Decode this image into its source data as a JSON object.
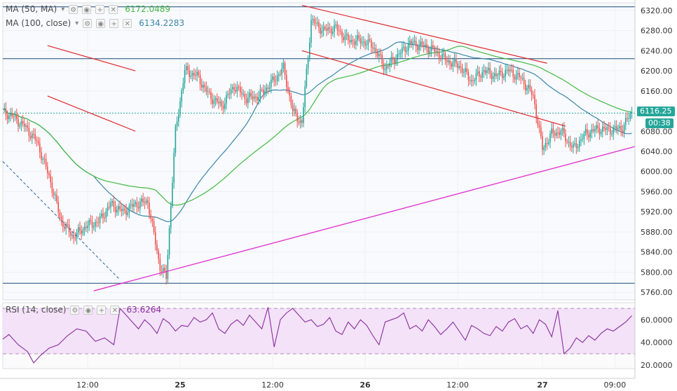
{
  "legend": {
    "ma50": {
      "label": "MA (50, MA)",
      "value": "6172.0489",
      "color": "#43b843"
    },
    "ma100": {
      "label": "MA (100, close)",
      "value": "6134.2283",
      "color": "#3d86a8"
    },
    "rsi": {
      "label": "RSI (14, close)",
      "value": "63.6264",
      "color": "#8a2d9e"
    }
  },
  "icons": [
    "settings-icon",
    "eye-icon",
    "plus-icon",
    "close-icon"
  ],
  "price_tag": {
    "price": "6116.25",
    "countdown": "00:38",
    "color": "#26a69a"
  },
  "colors": {
    "up": "#26a69a",
    "down": "#ef5350",
    "channel": "#e0272d",
    "support": "#e32fd0",
    "horizontal": "#1a4a7a",
    "rsi_band": "#f3e2f8"
  },
  "chart_data": [
    {
      "type": "candlestick",
      "title": "",
      "x_ticks": [
        "12:00",
        "25",
        "12:00",
        "26",
        "12:00",
        "27",
        "09:00"
      ],
      "y_ticks": [
        5760,
        5800,
        5840,
        5880,
        5920,
        5960,
        6000,
        6040,
        6080,
        6160,
        6200,
        6240,
        6280,
        6320
      ],
      "ylim": [
        5745,
        6335
      ],
      "grid": true,
      "last_price": 6116.25,
      "series": [
        {
          "name": "MA (50, MA)",
          "value": 6172.0489
        },
        {
          "name": "MA (100, close)",
          "value": 6134.2283
        }
      ],
      "close_path": [
        [
          0,
          6118
        ],
        [
          6,
          6110
        ],
        [
          14,
          6090
        ],
        [
          22,
          6060
        ],
        [
          30,
          5990
        ],
        [
          38,
          5900
        ],
        [
          46,
          5870
        ],
        [
          54,
          5892
        ],
        [
          62,
          5900
        ],
        [
          70,
          5935
        ],
        [
          78,
          5920
        ],
        [
          86,
          5935
        ],
        [
          94,
          5940
        ],
        [
          102,
          5810
        ],
        [
          106,
          5790
        ],
        [
          112,
          6080
        ],
        [
          118,
          6200
        ],
        [
          126,
          6190
        ],
        [
          134,
          6150
        ],
        [
          142,
          6130
        ],
        [
          150,
          6170
        ],
        [
          158,
          6145
        ],
        [
          166,
          6150
        ],
        [
          174,
          6175
        ],
        [
          182,
          6205
        ],
        [
          188,
          6120
        ],
        [
          194,
          6095
        ],
        [
          200,
          6300
        ],
        [
          208,
          6280
        ],
        [
          216,
          6285
        ],
        [
          224,
          6260
        ],
        [
          232,
          6260
        ],
        [
          240,
          6250
        ],
        [
          248,
          6205
        ],
        [
          256,
          6230
        ],
        [
          264,
          6255
        ],
        [
          272,
          6250
        ],
        [
          280,
          6240
        ],
        [
          288,
          6220
        ],
        [
          296,
          6210
        ],
        [
          304,
          6180
        ],
        [
          312,
          6200
        ],
        [
          320,
          6190
        ],
        [
          328,
          6200
        ],
        [
          336,
          6185
        ],
        [
          344,
          6150
        ],
        [
          350,
          6045
        ],
        [
          356,
          6075
        ],
        [
          362,
          6080
        ],
        [
          370,
          6045
        ],
        [
          378,
          6075
        ],
        [
          386,
          6085
        ],
        [
          394,
          6082
        ],
        [
          402,
          6087
        ],
        [
          408,
          6118
        ]
      ],
      "channels": [
        {
          "from": [
            29,
            6250
          ],
          "to": [
            86,
            6200
          ]
        },
        {
          "from": [
            29,
            6150
          ],
          "to": [
            86,
            6080
          ]
        },
        {
          "from": [
            194,
            6330
          ],
          "to": [
            353,
            6215
          ]
        },
        {
          "from": [
            194,
            6240
          ],
          "to": [
            365,
            6090
          ]
        }
      ],
      "support_line": {
        "from": [
          59,
          5763
        ],
        "to": [
          418,
          6056
        ]
      },
      "horizontals": [
        6327,
        6224,
        6116,
        5778
      ]
    },
    {
      "type": "line",
      "title": "",
      "y_ticks": [
        20,
        40,
        60
      ],
      "ylim": [
        17,
        75
      ],
      "bands": [
        30,
        70
      ],
      "series": [
        {
          "name": "RSI (14, close)",
          "last": 63.6264,
          "x": [
            0,
            4,
            10,
            16,
            20,
            24,
            30,
            36,
            42,
            48,
            54,
            60,
            66,
            72,
            76,
            80,
            84,
            88,
            92,
            96,
            100,
            104,
            108,
            112,
            116,
            120,
            124,
            128,
            132,
            136,
            140,
            144,
            148,
            152,
            156,
            160,
            164,
            168,
            172,
            176,
            180,
            184,
            188,
            192,
            196,
            200,
            204,
            208,
            212,
            216,
            220,
            224,
            228,
            232,
            236,
            240,
            244,
            248,
            252,
            256,
            260,
            264,
            268,
            272,
            276,
            280,
            284,
            288,
            292,
            296,
            300,
            304,
            308,
            312,
            316,
            320,
            324,
            328,
            332,
            336,
            340,
            344,
            348,
            352,
            356,
            360,
            364,
            368,
            372,
            376,
            380,
            384,
            388,
            392,
            396,
            400,
            404,
            408
          ],
          "y": [
            43,
            47,
            38,
            32,
            22,
            28,
            35,
            38,
            46,
            52,
            50,
            41,
            44,
            38,
            70,
            64,
            58,
            52,
            60,
            55,
            48,
            61,
            57,
            50,
            55,
            54,
            62,
            58,
            60,
            66,
            52,
            48,
            56,
            60,
            55,
            64,
            58,
            52,
            71,
            36,
            60,
            66,
            70,
            64,
            58,
            60,
            54,
            56,
            62,
            50,
            47,
            58,
            52,
            60,
            55,
            46,
            38,
            58,
            60,
            62,
            66,
            52,
            55,
            50,
            60,
            54,
            47,
            52,
            58,
            50,
            42,
            55,
            52,
            48,
            46,
            54,
            50,
            58,
            61,
            52,
            55,
            48,
            60,
            56,
            45,
            68,
            30,
            35,
            44,
            40,
            46,
            42,
            48,
            52,
            50,
            54,
            58,
            63.6
          ]
        }
      ]
    }
  ]
}
